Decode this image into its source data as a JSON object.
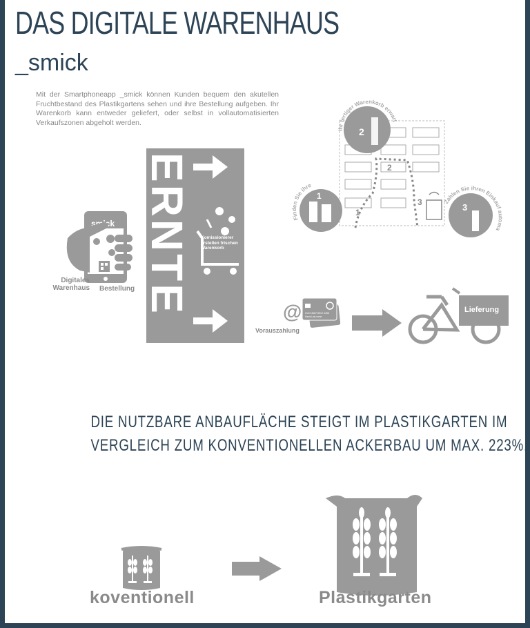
{
  "header": {
    "title": "DAS DIGITALE WARENHAUS",
    "subtitle": "_smick"
  },
  "intro_text": "Mit der Smartphoneapp _smick können Kunden bequem den akutellen Fruchtbestand des Plastikgartens sehen und ihre Bestellung aufgeben. Ihr Warenkorb kann entweder geliefert, oder selbst in vollautomatisierten Verkaufszonen abgeholt werden.",
  "phone": {
    "app_name": "smick",
    "label_left_line1": "Digitales",
    "label_left_line2": "Warenhaus",
    "label_right": "Bestellung"
  },
  "harvest": {
    "word": "ERNTE",
    "cart_label": "Komissionierer erstellen frischen Warenkorb"
  },
  "pickup": {
    "step1_label": "Finden Sie ihre Bestellung",
    "step2_label": "Ihr fertiger Warenkorb erwartet Sie",
    "step3_label": "Zahlen Sie ihren Einkauf automatisch",
    "step_numbers": [
      "1",
      "2",
      "3"
    ]
  },
  "payment": {
    "at_symbol": "@",
    "card_number": "0123 4567 8912 3456",
    "card_name": "Name Last name",
    "label": "Vorauszahlung"
  },
  "delivery": {
    "label": "Lieferung"
  },
  "claim": {
    "line1": "DIE NUTZBARE ANBAUFLÄCHE STEIGT IM PLASTIKGARTEN IM",
    "line2": "VERGLEICH ZUM KONVENTIONELLEN ACKERBAU UM MAX. 223%."
  },
  "comparison": {
    "left_label": "koventionell",
    "right_label": "Plastikgarten"
  },
  "colors": {
    "navy": "#2d4456",
    "gray": "#9a9a9a",
    "dark_gray": "#8a8a8a"
  }
}
